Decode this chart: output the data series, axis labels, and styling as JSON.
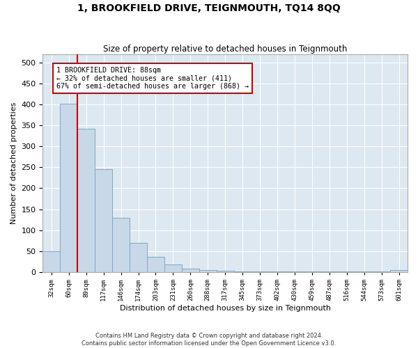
{
  "title": "1, BROOKFIELD DRIVE, TEIGNMOUTH, TQ14 8QQ",
  "subtitle": "Size of property relative to detached houses in Teignmouth",
  "xlabel": "Distribution of detached houses by size in Teignmouth",
  "ylabel": "Number of detached properties",
  "bar_color": "#c8d8e8",
  "bar_edge_color": "#7aaac8",
  "background_color": "#dde8f0",
  "grid_color": "#ffffff",
  "property_line_color": "#cc0000",
  "annotation_text": "1 BROOKFIELD DRIVE: 88sqm\n← 32% of detached houses are smaller (411)\n67% of semi-detached houses are larger (868) →",
  "annotation_box_color": "#cc0000",
  "categories": [
    "32sqm",
    "60sqm",
    "89sqm",
    "117sqm",
    "146sqm",
    "174sqm",
    "203sqm",
    "231sqm",
    "260sqm",
    "288sqm",
    "317sqm",
    "345sqm",
    "373sqm",
    "402sqm",
    "430sqm",
    "459sqm",
    "487sqm",
    "516sqm",
    "544sqm",
    "573sqm",
    "601sqm"
  ],
  "bin_edges": [
    32,
    60,
    89,
    117,
    146,
    174,
    203,
    231,
    260,
    288,
    317,
    345,
    373,
    402,
    430,
    459,
    487,
    516,
    544,
    573,
    601
  ],
  "values": [
    50,
    402,
    343,
    246,
    130,
    70,
    36,
    17,
    7,
    5,
    2,
    1,
    1,
    1,
    1,
    1,
    1,
    1,
    1,
    1,
    5
  ],
  "property_sqm": 88,
  "ylim": [
    0,
    520
  ],
  "yticks": [
    0,
    50,
    100,
    150,
    200,
    250,
    300,
    350,
    400,
    450,
    500
  ],
  "footnote": "Contains HM Land Registry data © Crown copyright and database right 2024.\nContains public sector information licensed under the Open Government Licence v3.0."
}
